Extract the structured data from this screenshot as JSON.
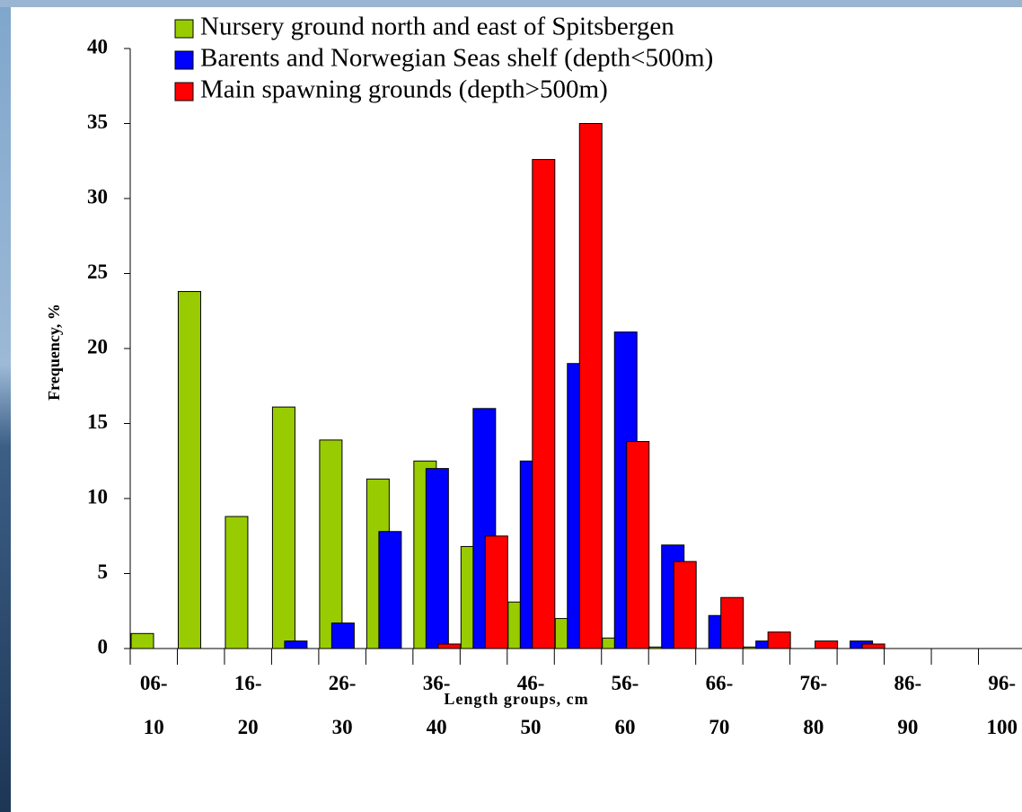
{
  "chart_data": {
    "type": "bar",
    "xlabel": "Length groups, cm",
    "ylabel": "Frequency, %",
    "categories": [
      "06-10",
      null,
      "16-20",
      null,
      "26-30",
      null,
      "36-40",
      null,
      "46-50",
      null,
      "56-60",
      null,
      "66-70",
      null,
      "76-80",
      null,
      "86-90",
      null,
      "96-100"
    ],
    "series": [
      {
        "name": "Nursery ground north and east of Spitsbergen",
        "color": "#99cc00",
        "values": [
          1,
          23.8,
          8.8,
          16.1,
          13.9,
          11.3,
          12.5,
          6.8,
          3.1,
          2.0,
          0.7,
          0.1,
          0,
          0.1,
          0,
          0,
          0,
          0,
          0
        ]
      },
      {
        "name": "Barents and Norwegian Seas shelf (depth<500m)",
        "color": "#0000ff",
        "values": [
          0,
          0,
          0,
          0.5,
          1.7,
          7.8,
          12,
          16,
          12.5,
          19,
          21.1,
          6.9,
          2.2,
          0.5,
          0,
          0.5,
          0,
          0,
          0
        ]
      },
      {
        "name": "Main spawning grounds (depth>500m)",
        "color": "#ff0000",
        "values": [
          0,
          0,
          0,
          0,
          0,
          0,
          0.3,
          7.5,
          32.6,
          35,
          13.8,
          5.8,
          3.4,
          1.1,
          0.5,
          0.3,
          0,
          0,
          0
        ]
      }
    ],
    "ylim": [
      0,
      40
    ],
    "yticks": [
      0,
      5,
      10,
      15,
      20,
      25,
      30,
      35,
      40
    ]
  }
}
